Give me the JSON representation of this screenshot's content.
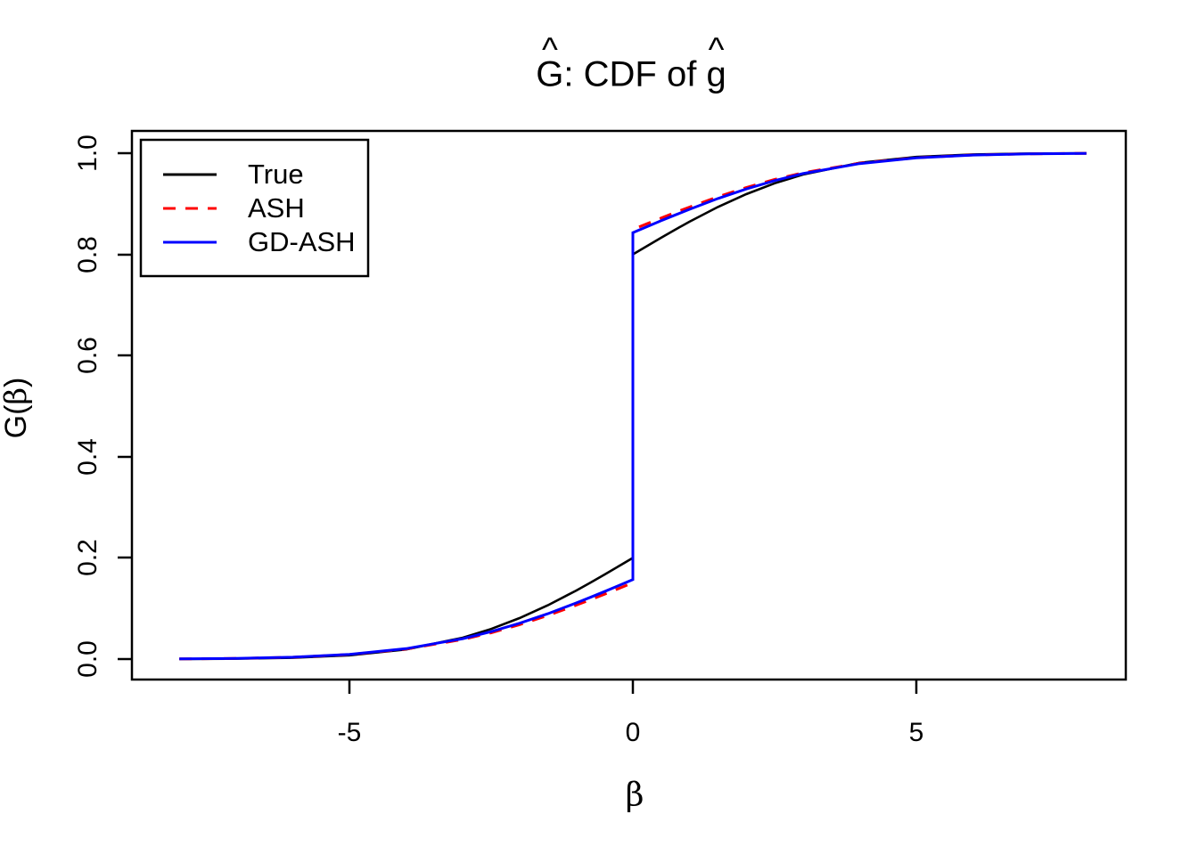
{
  "title": {
    "hat": "^",
    "g_upper": "G",
    "separator": ": CDF of ",
    "g_lower": "g"
  },
  "axes": {
    "x": {
      "label": "β",
      "tick_labels": [
        "-5",
        "0",
        "5"
      ]
    },
    "y": {
      "label_hat": "^",
      "label_g": "G",
      "label_open": "(",
      "label_beta": "β",
      "label_close": ")",
      "tick_labels": [
        "0.0",
        "0.2",
        "0.4",
        "0.6",
        "0.8",
        "1.0"
      ]
    }
  },
  "legend": {
    "entries": [
      {
        "label": "True",
        "color": "#000000",
        "dashed": false
      },
      {
        "label": "ASH",
        "color": "#FF0000",
        "dashed": true
      },
      {
        "label": "GD-ASH",
        "color": "#0000FF",
        "dashed": false
      }
    ]
  },
  "colors": {
    "foreground": "#000000",
    "background": "#FFFFFF",
    "true_line": "#000000",
    "ash_line": "#FF0000",
    "gdash_line": "#0000FF"
  },
  "chart_data": {
    "type": "line",
    "title": "Ĝ: CDF of ĝ",
    "xlabel": "β",
    "ylabel": "Ĝ(β)",
    "xlim": [
      -8.6,
      8.6
    ],
    "ylim": [
      0.0,
      1.0
    ],
    "x_ticks": [
      -5,
      0,
      5
    ],
    "y_ticks": [
      0.0,
      0.2,
      0.4,
      0.6,
      0.8,
      1.0
    ],
    "grid": false,
    "legend_position": "top-left",
    "series": [
      {
        "name": "True",
        "color": "#000000",
        "dashed": false,
        "points": [
          [
            -8,
            0.0002
          ],
          [
            -7,
            0.0007
          ],
          [
            -6,
            0.0025
          ],
          [
            -5,
            0.0074
          ],
          [
            -4,
            0.0191
          ],
          [
            -3,
            0.0422
          ],
          [
            -2.5,
            0.0595
          ],
          [
            -2,
            0.081
          ],
          [
            -1.5,
            0.1064
          ],
          [
            -1,
            0.1354
          ],
          [
            -0.75,
            0.1509
          ],
          [
            -0.5,
            0.167
          ],
          [
            -0.25,
            0.1834
          ],
          [
            0,
            0.2
          ],
          [
            0,
            0.8
          ],
          [
            0.25,
            0.8166
          ],
          [
            0.5,
            0.833
          ],
          [
            0.75,
            0.8491
          ],
          [
            1,
            0.8646
          ],
          [
            1.5,
            0.8936
          ],
          [
            2,
            0.919
          ],
          [
            2.5,
            0.9405
          ],
          [
            3,
            0.9578
          ],
          [
            4,
            0.9809
          ],
          [
            5,
            0.9926
          ],
          [
            6,
            0.9975
          ],
          [
            7,
            0.9993
          ],
          [
            8,
            0.9998
          ]
        ]
      },
      {
        "name": "ASH",
        "color": "#FF0000",
        "dashed": true,
        "points": [
          [
            -8,
            0.0004
          ],
          [
            -7,
            0.0012
          ],
          [
            -6,
            0.0036
          ],
          [
            -5,
            0.0089
          ],
          [
            -4,
            0.0198
          ],
          [
            -3,
            0.0388
          ],
          [
            -2.5,
            0.052
          ],
          [
            -2,
            0.0679
          ],
          [
            -1.5,
            0.0861
          ],
          [
            -1,
            0.1065
          ],
          [
            -0.75,
            0.1171
          ],
          [
            -0.5,
            0.1282
          ],
          [
            -0.25,
            0.1394
          ],
          [
            0,
            0.1507
          ],
          [
            0,
            0.8493
          ],
          [
            0.25,
            0.8606
          ],
          [
            0.5,
            0.8718
          ],
          [
            0.75,
            0.8829
          ],
          [
            1,
            0.8935
          ],
          [
            1.5,
            0.9139
          ],
          [
            2,
            0.9321
          ],
          [
            2.5,
            0.948
          ],
          [
            3,
            0.9612
          ],
          [
            4,
            0.9802
          ],
          [
            5,
            0.9911
          ],
          [
            6,
            0.9964
          ],
          [
            7,
            0.9988
          ],
          [
            8,
            0.9996
          ]
        ]
      },
      {
        "name": "GD-ASH",
        "color": "#0000FF",
        "dashed": false,
        "points": [
          [
            -8,
            0.0004
          ],
          [
            -7,
            0.0013
          ],
          [
            -6,
            0.0037
          ],
          [
            -5,
            0.0093
          ],
          [
            -4,
            0.0206
          ],
          [
            -3,
            0.0404
          ],
          [
            -2.5,
            0.0542
          ],
          [
            -2,
            0.0707
          ],
          [
            -1.5,
            0.0897
          ],
          [
            -1,
            0.1109
          ],
          [
            -0.75,
            0.122
          ],
          [
            -0.5,
            0.1335
          ],
          [
            -0.25,
            0.1452
          ],
          [
            0,
            0.157
          ],
          [
            0,
            0.843
          ],
          [
            0.25,
            0.8548
          ],
          [
            0.5,
            0.8665
          ],
          [
            0.75,
            0.878
          ],
          [
            1,
            0.8891
          ],
          [
            1.5,
            0.9103
          ],
          [
            2,
            0.9293
          ],
          [
            2.5,
            0.9458
          ],
          [
            3,
            0.9596
          ],
          [
            4,
            0.9794
          ],
          [
            5,
            0.9907
          ],
          [
            6,
            0.9963
          ],
          [
            7,
            0.9987
          ],
          [
            8,
            0.9996
          ]
        ]
      }
    ]
  }
}
